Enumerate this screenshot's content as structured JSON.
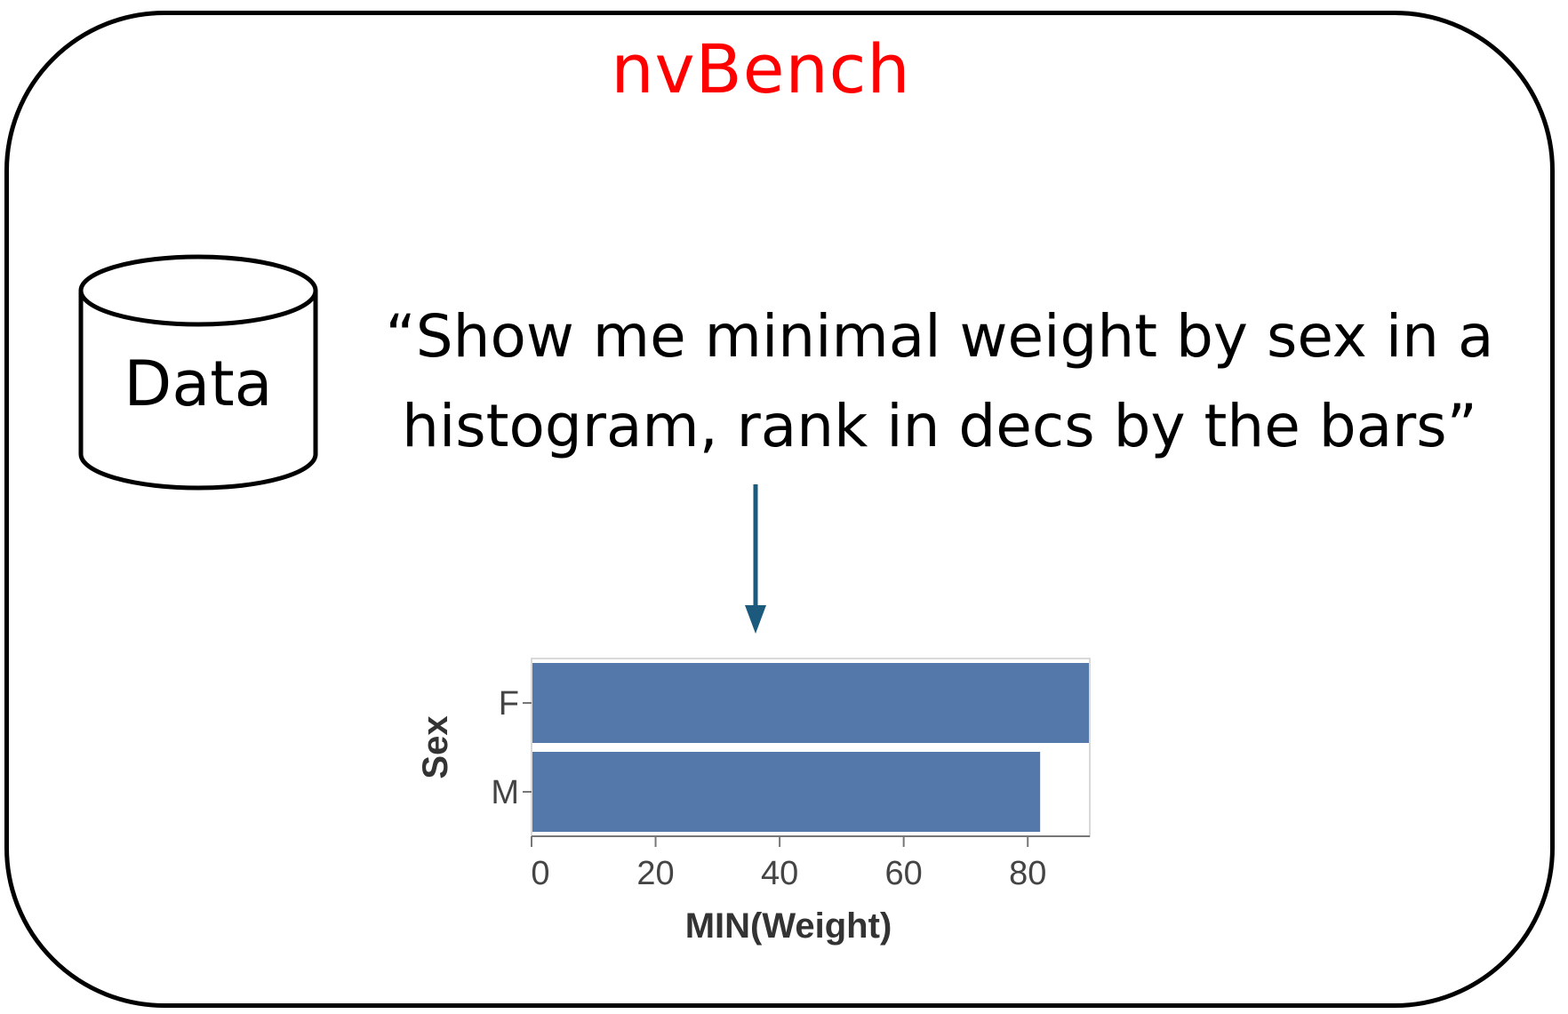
{
  "title": "nvBench",
  "database": {
    "label": "Data"
  },
  "query": {
    "line1": "“Show me minimal weight by sex in a",
    "line2": "histogram, rank in decs by the bars”"
  },
  "colors": {
    "title": "#ff0000",
    "arrow": "#1c5a7d",
    "bar": "#5378a9",
    "frame": "#000000"
  },
  "chart_data": {
    "type": "bar",
    "orientation": "horizontal",
    "categories": [
      "F",
      "M"
    ],
    "values": [
      90,
      82
    ],
    "xlabel": "MIN(Weight)",
    "ylabel": "Sex",
    "xlim": [
      0,
      90
    ],
    "xticks": [
      0,
      20,
      40,
      60,
      80
    ],
    "grid": false
  }
}
